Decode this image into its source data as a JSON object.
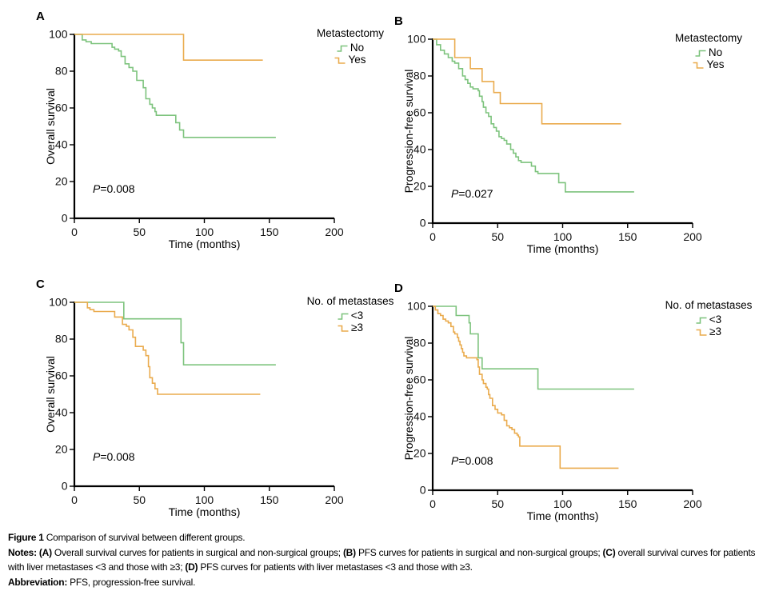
{
  "figure": {
    "caption": {
      "lines": [
        {
          "segments": [
            {
              "text": "Figure 1 ",
              "bold": true
            },
            {
              "text": "Comparison of survival between different groups.",
              "bold": false
            }
          ]
        },
        {
          "segments": [
            {
              "text": "Notes: ",
              "bold": true
            },
            {
              "text": "(A)",
              "bold": true
            },
            {
              "text": " Overall survival curves for patients in surgical and non-surgical groups; ",
              "bold": false
            },
            {
              "text": "(B)",
              "bold": true
            },
            {
              "text": " PFS curves for patients in surgical and non-surgical groups; ",
              "bold": false
            },
            {
              "text": "(C)",
              "bold": true
            },
            {
              "text": " overall survival curves for patients with liver metastases <3 and those with ≥3; ",
              "bold": false
            },
            {
              "text": "(D)",
              "bold": true
            },
            {
              "text": " PFS curves for patients with liver metastases <3 and those with ≥3.",
              "bold": false
            }
          ]
        },
        {
          "segments": [
            {
              "text": "Abbreviation: ",
              "bold": true
            },
            {
              "text": "PFS, progression-free survival.",
              "bold": false
            }
          ]
        }
      ]
    },
    "colors": {
      "group1": "#7dc37d",
      "group2": "#eaab4d",
      "axis": "#000000"
    }
  },
  "chart_data": [
    {
      "panel": "A",
      "type": "line",
      "subtype": "kaplan-meier-step",
      "title": "",
      "xlabel": "Time (months)",
      "ylabel": "Overall survival",
      "xlim": [
        0,
        200
      ],
      "ylim": [
        0,
        100
      ],
      "xticks": [
        0,
        50,
        100,
        150,
        200
      ],
      "yticks": [
        0,
        20,
        40,
        60,
        80,
        100
      ],
      "grid": false,
      "legend_position": "top-right",
      "p_italic": "P",
      "p_rest": "=0.008",
      "legend": {
        "title": "Metastectomy",
        "entries": [
          {
            "label": "No",
            "color": "#7dc37d"
          },
          {
            "label": "Yes",
            "color": "#eaab4d"
          }
        ]
      },
      "series": [
        {
          "name": "No",
          "color": "#7dc37d",
          "points": [
            [
              0,
              100
            ],
            [
              6,
              97
            ],
            [
              9,
              96
            ],
            [
              13,
              95
            ],
            [
              29,
              93
            ],
            [
              31,
              92
            ],
            [
              34,
              91
            ],
            [
              36,
              88
            ],
            [
              39,
              84
            ],
            [
              42,
              82
            ],
            [
              45,
              80
            ],
            [
              48,
              75
            ],
            [
              53,
              71
            ],
            [
              55,
              65
            ],
            [
              58,
              62
            ],
            [
              60,
              60
            ],
            [
              62,
              58
            ],
            [
              63,
              56
            ],
            [
              78,
              52
            ],
            [
              81,
              48
            ],
            [
              84,
              44
            ],
            [
              155,
              44
            ]
          ]
        },
        {
          "name": "Yes",
          "color": "#eaab4d",
          "points": [
            [
              0,
              100
            ],
            [
              84,
              86
            ],
            [
              145,
              86
            ]
          ]
        }
      ]
    },
    {
      "panel": "B",
      "type": "line",
      "subtype": "kaplan-meier-step",
      "title": "",
      "xlabel": "Time (months)",
      "ylabel": "Progression-free survival",
      "xlim": [
        0,
        200
      ],
      "ylim": [
        0,
        100
      ],
      "xticks": [
        0,
        50,
        100,
        150,
        200
      ],
      "yticks": [
        0,
        20,
        40,
        60,
        80,
        100
      ],
      "grid": false,
      "legend_position": "top-right",
      "p_italic": "P",
      "p_rest": "=0.027",
      "legend": {
        "title": "Metastectomy",
        "entries": [
          {
            "label": "No",
            "color": "#7dc37d"
          },
          {
            "label": "Yes",
            "color": "#eaab4d"
          }
        ]
      },
      "series": [
        {
          "name": "No",
          "color": "#7dc37d",
          "points": [
            [
              0,
              100
            ],
            [
              3,
              97
            ],
            [
              6,
              94
            ],
            [
              9,
              92
            ],
            [
              12,
              90
            ],
            [
              15,
              88
            ],
            [
              17,
              87
            ],
            [
              20,
              84
            ],
            [
              23,
              80
            ],
            [
              25,
              78
            ],
            [
              27,
              76
            ],
            [
              29,
              74
            ],
            [
              31,
              73
            ],
            [
              35,
              72
            ],
            [
              36,
              69
            ],
            [
              38,
              66
            ],
            [
              39,
              63
            ],
            [
              41,
              60
            ],
            [
              43,
              58
            ],
            [
              45,
              54
            ],
            [
              47,
              52
            ],
            [
              49,
              50
            ],
            [
              51,
              47
            ],
            [
              53,
              46
            ],
            [
              55,
              45
            ],
            [
              57,
              43
            ],
            [
              60,
              40
            ],
            [
              62,
              38
            ],
            [
              64,
              36
            ],
            [
              66,
              34
            ],
            [
              68,
              33
            ],
            [
              76,
              31
            ],
            [
              79,
              28
            ],
            [
              81,
              27
            ],
            [
              97,
              22
            ],
            [
              102,
              17
            ],
            [
              155,
              17
            ]
          ]
        },
        {
          "name": "Yes",
          "color": "#eaab4d",
          "points": [
            [
              0,
              100
            ],
            [
              17,
              90
            ],
            [
              29,
              84
            ],
            [
              38,
              77
            ],
            [
              47,
              71
            ],
            [
              52,
              65
            ],
            [
              84,
              54
            ],
            [
              145,
              54
            ]
          ]
        }
      ]
    },
    {
      "panel": "C",
      "type": "line",
      "subtype": "kaplan-meier-step",
      "title": "",
      "xlabel": "Time (months)",
      "ylabel": "Overall survival",
      "xlim": [
        0,
        200
      ],
      "ylim": [
        0,
        100
      ],
      "xticks": [
        0,
        50,
        100,
        150,
        200
      ],
      "yticks": [
        0,
        20,
        40,
        60,
        80,
        100
      ],
      "grid": false,
      "legend_position": "top-right",
      "p_italic": "P",
      "p_rest": "=0.008",
      "legend": {
        "title": "No. of metastases",
        "entries": [
          {
            "label": "<3",
            "color": "#7dc37d"
          },
          {
            "label": "≥3",
            "color": "#eaab4d"
          }
        ]
      },
      "series": [
        {
          "name": "<3",
          "color": "#7dc37d",
          "points": [
            [
              0,
              100
            ],
            [
              38,
              91
            ],
            [
              82,
              78
            ],
            [
              84,
              66
            ],
            [
              155,
              66
            ]
          ]
        },
        {
          "name": "≥3",
          "color": "#eaab4d",
          "points": [
            [
              0,
              100
            ],
            [
              10,
              97
            ],
            [
              12,
              96
            ],
            [
              15,
              95
            ],
            [
              31,
              92
            ],
            [
              37,
              88
            ],
            [
              40,
              87
            ],
            [
              42,
              85
            ],
            [
              45,
              81
            ],
            [
              47,
              76
            ],
            [
              53,
              74
            ],
            [
              55,
              71
            ],
            [
              57,
              65
            ],
            [
              58,
              59
            ],
            [
              60,
              56
            ],
            [
              62,
              53
            ],
            [
              64,
              50
            ],
            [
              143,
              50
            ]
          ]
        }
      ]
    },
    {
      "panel": "D",
      "type": "line",
      "subtype": "kaplan-meier-step",
      "title": "",
      "xlabel": "Time (months)",
      "ylabel": "Progression-free survival",
      "xlim": [
        0,
        200
      ],
      "ylim": [
        0,
        100
      ],
      "xticks": [
        0,
        50,
        100,
        150,
        200
      ],
      "yticks": [
        0,
        20,
        40,
        60,
        80,
        100
      ],
      "grid": false,
      "legend_position": "top-right",
      "p_italic": "P",
      "p_rest": "=0.008",
      "legend": {
        "title": "No. of metastases",
        "entries": [
          {
            "label": "<3",
            "color": "#7dc37d"
          },
          {
            "label": "≥3",
            "color": "#eaab4d"
          }
        ]
      },
      "series": [
        {
          "name": "<3",
          "color": "#7dc37d",
          "points": [
            [
              0,
              100
            ],
            [
              18,
              95
            ],
            [
              28,
              91
            ],
            [
              29,
              85
            ],
            [
              35,
              72
            ],
            [
              38,
              66
            ],
            [
              81,
              55
            ],
            [
              155,
              55
            ]
          ]
        },
        {
          "name": "≥3",
          "color": "#eaab4d",
          "points": [
            [
              0,
              100
            ],
            [
              2,
              98
            ],
            [
              4,
              96
            ],
            [
              6,
              95
            ],
            [
              8,
              93
            ],
            [
              10,
              92
            ],
            [
              12,
              91
            ],
            [
              14,
              89
            ],
            [
              16,
              86
            ],
            [
              17,
              85
            ],
            [
              19,
              83
            ],
            [
              20,
              81
            ],
            [
              21,
              79
            ],
            [
              22,
              77
            ],
            [
              23,
              75
            ],
            [
              24,
              73
            ],
            [
              26,
              72
            ],
            [
              34,
              71
            ],
            [
              35,
              67
            ],
            [
              36,
              63
            ],
            [
              38,
              60
            ],
            [
              39,
              58
            ],
            [
              41,
              56
            ],
            [
              42,
              55
            ],
            [
              43,
              52
            ],
            [
              44,
              50
            ],
            [
              46,
              46
            ],
            [
              48,
              44
            ],
            [
              50,
              42
            ],
            [
              53,
              41
            ],
            [
              55,
              38
            ],
            [
              57,
              35
            ],
            [
              59,
              34
            ],
            [
              61,
              33
            ],
            [
              63,
              31
            ],
            [
              65,
              30
            ],
            [
              66,
              29
            ],
            [
              67,
              24
            ],
            [
              98,
              12
            ],
            [
              143,
              12
            ]
          ]
        }
      ]
    }
  ]
}
